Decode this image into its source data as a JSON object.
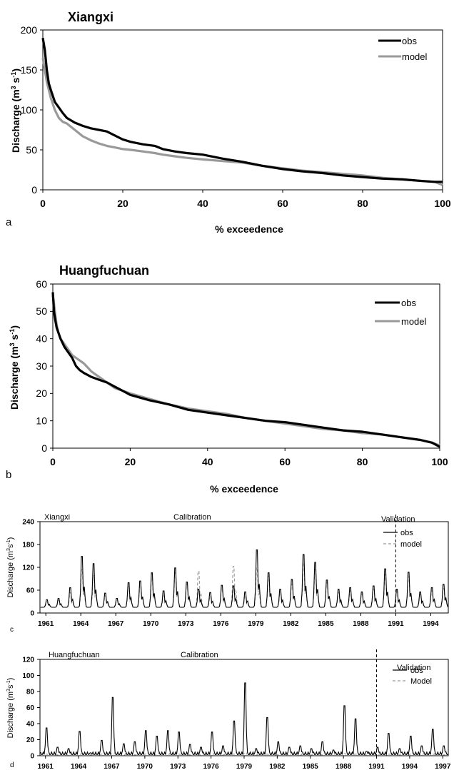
{
  "chart_data": [
    {
      "type": "line",
      "panel_letter": "a",
      "title": "Xiangxi",
      "xlabel": "% exceedence",
      "ylabel": "Discharge (m³ s⁻¹)",
      "ylabel_main": "Discharge (m",
      "ylabel_exp1": "3",
      "ylabel_mid": " s",
      "ylabel_exp2": "-1",
      "ylabel_end": ")",
      "xlim": [
        0,
        100
      ],
      "ylim": [
        0,
        200
      ],
      "xticks": [
        "0",
        "20",
        "40",
        "60",
        "80",
        "100"
      ],
      "yticks": [
        "0",
        "50",
        "100",
        "150",
        "200"
      ],
      "legend_position": "top-right",
      "series": [
        {
          "name": "obs",
          "color": "#000000",
          "x": [
            0,
            0.5,
            1,
            1.5,
            2,
            3,
            4,
            5,
            6,
            8,
            10,
            12,
            14,
            16,
            18,
            20,
            22,
            25,
            28,
            30,
            33,
            36,
            40,
            45,
            50,
            55,
            60,
            65,
            70,
            75,
            80,
            85,
            90,
            95,
            98,
            100
          ],
          "y": [
            190,
            175,
            150,
            133,
            125,
            110,
            103,
            96,
            90,
            84,
            80,
            77,
            75,
            73,
            68,
            63,
            60,
            57,
            55,
            51,
            48,
            46,
            44,
            39,
            35,
            30,
            26,
            23,
            21,
            18,
            16,
            14,
            13,
            11,
            10,
            10
          ]
        },
        {
          "name": "model",
          "color": "#999999",
          "x": [
            0,
            0.5,
            1,
            1.5,
            2,
            3,
            4,
            5,
            6,
            8,
            10,
            12,
            14,
            16,
            18,
            20,
            22,
            25,
            28,
            30,
            33,
            36,
            40,
            45,
            50,
            55,
            60,
            65,
            70,
            75,
            80,
            85,
            90,
            95,
            98,
            100
          ],
          "y": [
            165,
            150,
            135,
            125,
            115,
            100,
            90,
            85,
            83,
            75,
            67,
            62,
            58,
            55,
            53,
            51,
            50,
            48,
            46,
            44,
            42,
            40,
            38,
            36,
            34,
            30,
            27,
            24,
            22,
            20,
            18,
            15,
            13,
            11,
            10,
            6
          ]
        }
      ]
    },
    {
      "type": "line",
      "panel_letter": "b",
      "title": "Huangfuchuan",
      "xlabel": "% exceedence",
      "ylabel_main": "Discharge (m",
      "ylabel_exp1": "3",
      "ylabel_mid": " s",
      "ylabel_exp2": "-1",
      "ylabel_end": ")",
      "xlim": [
        0,
        100
      ],
      "ylim": [
        0,
        60
      ],
      "xticks": [
        "0",
        "20",
        "40",
        "60",
        "80",
        "100"
      ],
      "yticks": [
        "0",
        "10",
        "20",
        "30",
        "40",
        "50",
        "60"
      ],
      "legend_position": "top-right",
      "series": [
        {
          "name": "obs",
          "color": "#000000",
          "x": [
            0,
            0.3,
            0.6,
            1,
            1.5,
            2,
            3,
            4,
            5,
            6,
            7,
            8,
            10,
            12,
            14,
            16,
            18,
            20,
            25,
            30,
            35,
            40,
            45,
            50,
            55,
            60,
            65,
            70,
            75,
            80,
            85,
            90,
            95,
            98,
            100
          ],
          "y": [
            57,
            50,
            47,
            44,
            42,
            40,
            37,
            35,
            33,
            30,
            28.5,
            27.5,
            26,
            25,
            24,
            22.5,
            21,
            19.5,
            17.5,
            16,
            14,
            13,
            12,
            11,
            10,
            9.5,
            8.5,
            7.5,
            6.5,
            6,
            5,
            4,
            3,
            2,
            0.5
          ]
        },
        {
          "name": "model",
          "color": "#999999",
          "x": [
            0,
            0.3,
            0.6,
            1,
            1.5,
            2,
            3,
            4,
            5,
            6,
            7,
            8,
            10,
            12,
            14,
            16,
            18,
            20,
            25,
            30,
            35,
            40,
            45,
            50,
            55,
            60,
            65,
            70,
            75,
            80,
            85,
            90,
            95,
            98,
            100
          ],
          "y": [
            56,
            53,
            49,
            45,
            42,
            40,
            38,
            36,
            34,
            33,
            32,
            31,
            28,
            26,
            24,
            22,
            21,
            20,
            18,
            16,
            14.5,
            13.5,
            12.5,
            11,
            10,
            9,
            8,
            7,
            6.5,
            5.5,
            5,
            4,
            3,
            2,
            1
          ]
        }
      ]
    },
    {
      "type": "line",
      "panel_letter": "c",
      "title": "Xiangxi",
      "annotations": [
        "Calibration",
        "Validation"
      ],
      "ylabel_main": "Discharge (m",
      "ylabel_exp1": "3",
      "ylabel_mid": "s",
      "ylabel_exp2": "-1",
      "ylabel_end": ")",
      "xlim": [
        1960.5,
        1995.5
      ],
      "ylim": [
        0,
        240
      ],
      "xticks": [
        "1961",
        "1964",
        "1967",
        "1970",
        "1973",
        "1976",
        "1979",
        "1982",
        "1985",
        "1988",
        "1991",
        "1994"
      ],
      "yticks": [
        "0",
        "60",
        "120",
        "180",
        "240"
      ],
      "calibration_end_year": 1991,
      "legend_position": "top-right",
      "series": [
        {
          "name": "obs",
          "color": "#000000",
          "annual_peak": [
            38,
            42,
            75,
            170,
            148,
            58,
            42,
            90,
            95,
            120,
            65,
            135,
            92,
            70,
            60,
            82,
            80,
            62,
            190,
            120,
            70,
            100,
            176,
            152,
            98,
            70,
            75,
            62,
            80,
            132,
            70,
            122,
            62,
            75,
            85
          ]
        },
        {
          "name": "model",
          "color": "#999999",
          "annual_peak": [
            32,
            36,
            60,
            130,
            112,
            50,
            38,
            78,
            82,
            105,
            55,
            120,
            85,
            125,
            48,
            72,
            140,
            50,
            135,
            110,
            60,
            85,
            150,
            130,
            90,
            60,
            65,
            55,
            70,
            115,
            62,
            108,
            55,
            65,
            72
          ]
        }
      ]
    },
    {
      "type": "line",
      "panel_letter": "d",
      "title": "Huangfuchuan",
      "annotations": [
        "Calibration",
        "Validation"
      ],
      "ylabel_main": "Discharge (m",
      "ylabel_exp1": "3",
      "ylabel_mid": "s",
      "ylabel_exp2": "-1",
      "ylabel_end": ")",
      "xlim": [
        1960.5,
        1997.5
      ],
      "ylim": [
        0,
        120
      ],
      "xticks": [
        "1961",
        "1964",
        "1967",
        "1970",
        "1973",
        "1976",
        "1979",
        "1982",
        "1985",
        "1988",
        "1991",
        "1994",
        "1997"
      ],
      "yticks": [
        "0",
        "20",
        "40",
        "60",
        "80",
        "100",
        "120"
      ],
      "calibration_end_year": 1991,
      "legend_position": "top-right",
      "series": [
        {
          "name": "obs",
          "color": "#000000",
          "annual_peak": [
            40,
            12,
            10,
            35,
            4,
            22,
            84,
            17,
            20,
            36,
            28,
            36,
            34,
            16,
            12,
            34,
            14,
            50,
            105,
            10,
            55,
            20,
            12,
            14,
            10,
            20,
            8,
            72,
            53,
            6,
            12,
            32,
            10,
            28,
            14,
            38,
            14
          ]
        },
        {
          "name": "Model",
          "color": "#999999",
          "annual_peak": [
            2,
            1,
            1,
            2,
            1,
            2,
            3,
            1,
            1,
            2,
            1,
            2,
            2,
            1,
            1,
            2,
            1,
            2,
            4,
            1,
            2,
            1,
            1,
            1,
            1,
            1,
            1,
            3,
            2,
            1,
            1,
            2,
            1,
            2,
            1,
            2,
            1
          ]
        }
      ]
    }
  ]
}
